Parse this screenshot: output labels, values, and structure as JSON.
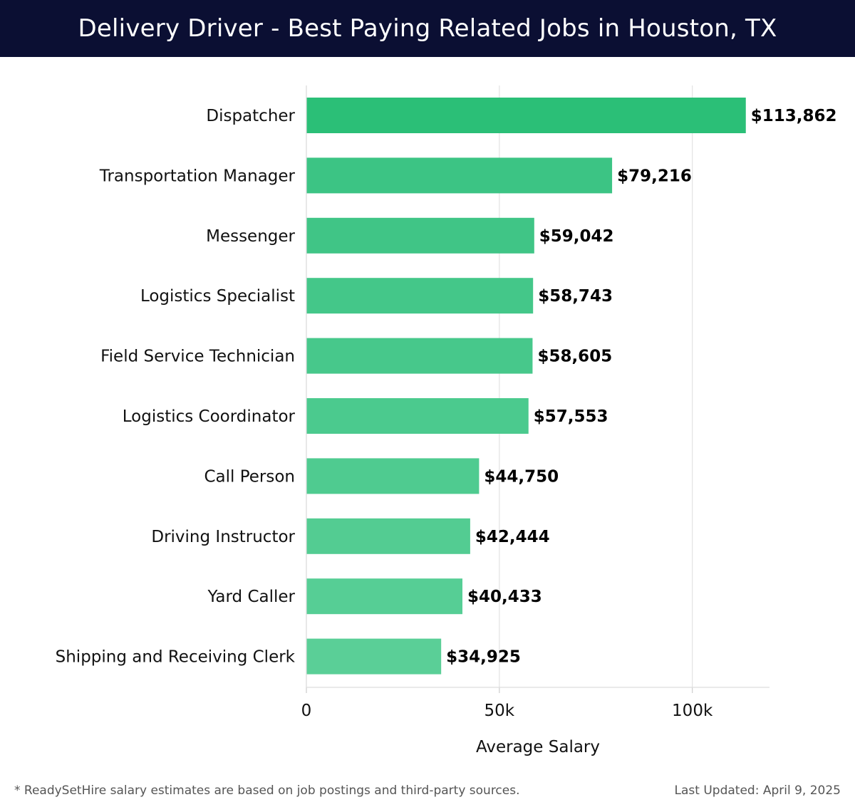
{
  "header": {
    "title": "Delivery Driver - Best Paying Related Jobs in Houston, TX"
  },
  "chart_data": {
    "type": "bar",
    "orientation": "horizontal",
    "title": "Delivery Driver - Best Paying Related Jobs in Houston, TX",
    "xlabel": "Average Salary",
    "ylabel": "",
    "categories": [
      "Dispatcher",
      "Transportation Manager",
      "Messenger",
      "Logistics Specialist",
      "Field Service Technician",
      "Logistics Coordinator",
      "Call Person",
      "Driving Instructor",
      "Yard Caller",
      "Shipping and Receiving Clerk"
    ],
    "values": [
      113862,
      79216,
      59042,
      58743,
      58605,
      57553,
      44750,
      42444,
      40433,
      34925
    ],
    "value_labels": [
      "$113,862",
      "$79,216",
      "$59,042",
      "$58,743",
      "$58,605",
      "$57,553",
      "$44,750",
      "$42,444",
      "$40,433",
      "$34,925"
    ],
    "xlim": [
      0,
      120000
    ],
    "x_ticks": [
      0,
      50000,
      100000
    ],
    "x_tick_labels": [
      "0",
      "50k",
      "100k"
    ],
    "grid": "vertical",
    "colors": {
      "top_bar": "#2bbf77",
      "bar_dark": "#3cc484",
      "bar_light": "#5acf97"
    }
  },
  "footer": {
    "note": "* ReadySetHire salary estimates are based on job postings and third-party sources.",
    "updated": "Last Updated: April 9, 2025"
  }
}
